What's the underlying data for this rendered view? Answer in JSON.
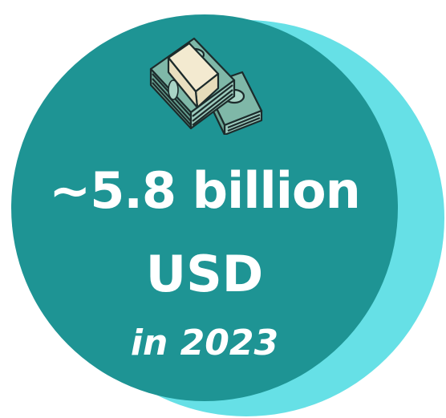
{
  "infographic": {
    "amount_text": "~5.8 billion",
    "currency_text": "USD",
    "year_text": "in 2023",
    "icon": "money-stack-icon"
  },
  "colors": {
    "front_disc": "#1e9494",
    "back_disc": "#66e0e6",
    "text": "#ffffff",
    "banknote": "#7fb8a8",
    "band": "#f3ead0"
  }
}
